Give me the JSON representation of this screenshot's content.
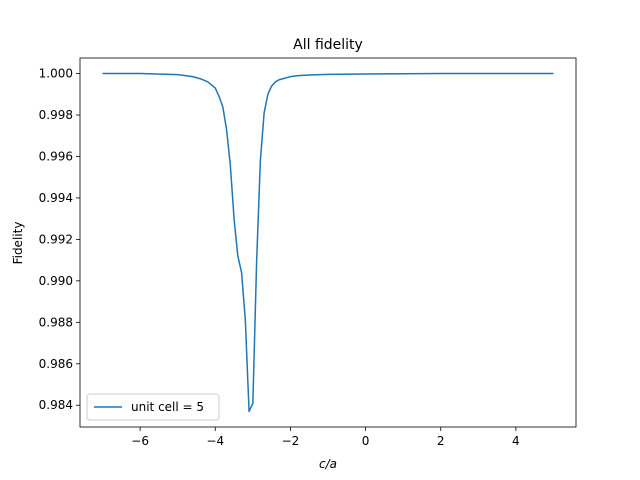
{
  "chart_data": {
    "type": "line",
    "title": "All fidelity",
    "xlabel": "c/a",
    "ylabel": "Fidelity",
    "xlim": [
      -7.6,
      5.6
    ],
    "ylim": [
      0.98295,
      1.00075
    ],
    "xticks": [
      -6,
      -4,
      -2,
      0,
      2,
      4
    ],
    "xtick_labels": [
      "−6",
      "−4",
      "−2",
      "0",
      "2",
      "4"
    ],
    "yticks": [
      0.984,
      0.986,
      0.988,
      0.99,
      0.992,
      0.994,
      0.996,
      0.998,
      1.0
    ],
    "ytick_labels": [
      "0.984",
      "0.986",
      "0.988",
      "0.990",
      "0.992",
      "0.994",
      "0.996",
      "0.998",
      "1.000"
    ],
    "grid": false,
    "legend_position": "lower-left",
    "series": [
      {
        "name": "unit cell = 5",
        "color": "#1f77b4",
        "x": [
          -7.0,
          -6.0,
          -5.0,
          -4.6,
          -4.4,
          -4.2,
          -4.0,
          -3.9,
          -3.8,
          -3.7,
          -3.6,
          -3.5,
          -3.4,
          -3.3,
          -3.2,
          -3.1,
          -3.0,
          -2.9,
          -2.8,
          -2.7,
          -2.6,
          -2.5,
          -2.4,
          -2.3,
          -2.2,
          -2.1,
          -2.0,
          -1.8,
          -1.5,
          -1.0,
          0.0,
          1.0,
          2.0,
          3.0,
          4.0,
          5.0
        ],
        "y": [
          1.0,
          1.0,
          0.99995,
          0.99985,
          0.99975,
          0.9996,
          0.9993,
          0.9989,
          0.9984,
          0.9973,
          0.9956,
          0.993,
          0.9912,
          0.9904,
          0.9881,
          0.9837,
          0.9841,
          0.9909,
          0.9958,
          0.9981,
          0.999,
          0.9994,
          0.9996,
          0.9997,
          0.99975,
          0.9998,
          0.99985,
          0.9999,
          0.99993,
          0.99996,
          0.99998,
          0.99999,
          1.0,
          1.0,
          1.0,
          1.0
        ]
      }
    ]
  }
}
